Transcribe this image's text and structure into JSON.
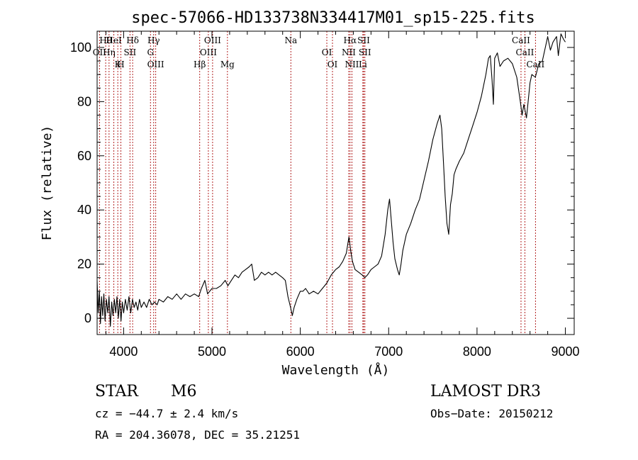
{
  "chart_data": {
    "type": "line",
    "title": "spec-57066-HD133738N334417M01_sp15-225.fits",
    "xlabel": "Wavelength (Å)",
    "ylabel": "Flux (relative)",
    "xlim": [
      3700,
      9100
    ],
    "ylim": [
      -6,
      106
    ],
    "x_ticks": [
      4000,
      5000,
      6000,
      7000,
      8000,
      9000
    ],
    "y_ticks": [
      0,
      20,
      40,
      60,
      80,
      100
    ],
    "series": [
      {
        "name": "spectrum",
        "points": [
          [
            3700,
            14
          ],
          [
            3712,
            2
          ],
          [
            3725,
            10
          ],
          [
            3738,
            -2
          ],
          [
            3750,
            8
          ],
          [
            3763,
            1
          ],
          [
            3776,
            9
          ],
          [
            3790,
            -1
          ],
          [
            3805,
            7
          ],
          [
            3820,
            2
          ],
          [
            3835,
            8
          ],
          [
            3850,
            -3
          ],
          [
            3865,
            6
          ],
          [
            3880,
            1
          ],
          [
            3895,
            7
          ],
          [
            3910,
            2
          ],
          [
            3925,
            8
          ],
          [
            3940,
            0
          ],
          [
            3955,
            7
          ],
          [
            3970,
            -1
          ],
          [
            3985,
            6
          ],
          [
            4000,
            2
          ],
          [
            4020,
            7
          ],
          [
            4040,
            3
          ],
          [
            4060,
            8
          ],
          [
            4080,
            2
          ],
          [
            4100,
            7
          ],
          [
            4120,
            4
          ],
          [
            4140,
            6
          ],
          [
            4160,
            3
          ],
          [
            4180,
            7
          ],
          [
            4200,
            4
          ],
          [
            4230,
            6
          ],
          [
            4260,
            4
          ],
          [
            4290,
            7
          ],
          [
            4320,
            5
          ],
          [
            4350,
            6
          ],
          [
            4380,
            5
          ],
          [
            4400,
            7
          ],
          [
            4450,
            6
          ],
          [
            4500,
            8
          ],
          [
            4550,
            7
          ],
          [
            4600,
            9
          ],
          [
            4650,
            7
          ],
          [
            4700,
            9
          ],
          [
            4750,
            8
          ],
          [
            4800,
            9
          ],
          [
            4850,
            8
          ],
          [
            4880,
            11
          ],
          [
            4920,
            14
          ],
          [
            4950,
            9
          ],
          [
            5000,
            11
          ],
          [
            5050,
            11
          ],
          [
            5100,
            12
          ],
          [
            5150,
            14
          ],
          [
            5180,
            12
          ],
          [
            5220,
            14
          ],
          [
            5260,
            16
          ],
          [
            5300,
            15
          ],
          [
            5340,
            17
          ],
          [
            5380,
            18
          ],
          [
            5420,
            19
          ],
          [
            5450,
            20
          ],
          [
            5480,
            14
          ],
          [
            5520,
            15
          ],
          [
            5560,
            17
          ],
          [
            5600,
            16
          ],
          [
            5640,
            17
          ],
          [
            5680,
            16
          ],
          [
            5720,
            17
          ],
          [
            5760,
            16
          ],
          [
            5800,
            15
          ],
          [
            5830,
            14
          ],
          [
            5860,
            8
          ],
          [
            5890,
            4
          ],
          [
            5910,
            1
          ],
          [
            5930,
            4
          ],
          [
            5960,
            7
          ],
          [
            6000,
            10
          ],
          [
            6030,
            10
          ],
          [
            6060,
            11
          ],
          [
            6100,
            9
          ],
          [
            6150,
            10
          ],
          [
            6200,
            9
          ],
          [
            6250,
            11
          ],
          [
            6300,
            13
          ],
          [
            6350,
            16
          ],
          [
            6400,
            18
          ],
          [
            6440,
            19
          ],
          [
            6480,
            21
          ],
          [
            6520,
            24
          ],
          [
            6550,
            30
          ],
          [
            6570,
            25
          ],
          [
            6590,
            21
          ],
          [
            6620,
            18
          ],
          [
            6660,
            17
          ],
          [
            6700,
            16
          ],
          [
            6730,
            15
          ],
          [
            6760,
            16
          ],
          [
            6800,
            18
          ],
          [
            6840,
            19
          ],
          [
            6880,
            20
          ],
          [
            6920,
            23
          ],
          [
            6960,
            31
          ],
          [
            6990,
            40
          ],
          [
            7010,
            44
          ],
          [
            7030,
            36
          ],
          [
            7050,
            28
          ],
          [
            7070,
            22
          ],
          [
            7100,
            18
          ],
          [
            7120,
            16
          ],
          [
            7140,
            20
          ],
          [
            7160,
            25
          ],
          [
            7200,
            31
          ],
          [
            7250,
            35
          ],
          [
            7300,
            40
          ],
          [
            7350,
            44
          ],
          [
            7400,
            51
          ],
          [
            7450,
            58
          ],
          [
            7500,
            66
          ],
          [
            7550,
            72
          ],
          [
            7580,
            75
          ],
          [
            7600,
            70
          ],
          [
            7620,
            58
          ],
          [
            7640,
            45
          ],
          [
            7660,
            35
          ],
          [
            7680,
            31
          ],
          [
            7700,
            42
          ],
          [
            7720,
            46
          ],
          [
            7740,
            53
          ],
          [
            7760,
            55
          ],
          [
            7800,
            58
          ],
          [
            7850,
            61
          ],
          [
            7900,
            66
          ],
          [
            7950,
            71
          ],
          [
            8000,
            76
          ],
          [
            8050,
            82
          ],
          [
            8100,
            90
          ],
          [
            8130,
            96
          ],
          [
            8150,
            97
          ],
          [
            8170,
            88
          ],
          [
            8185,
            79
          ],
          [
            8200,
            96
          ],
          [
            8230,
            98
          ],
          [
            8260,
            93
          ],
          [
            8300,
            95
          ],
          [
            8350,
            96
          ],
          [
            8400,
            94
          ],
          [
            8450,
            89
          ],
          [
            8490,
            80
          ],
          [
            8510,
            75
          ],
          [
            8530,
            79
          ],
          [
            8560,
            74
          ],
          [
            8600,
            87
          ],
          [
            8620,
            90
          ],
          [
            8660,
            89
          ],
          [
            8700,
            94
          ],
          [
            8740,
            95
          ],
          [
            8780,
            101
          ],
          [
            8800,
            104
          ],
          [
            8830,
            99
          ],
          [
            8860,
            102
          ],
          [
            8900,
            104
          ],
          [
            8920,
            97
          ],
          [
            8950,
            105
          ],
          [
            8980,
            103
          ],
          [
            9000,
            102
          ]
        ]
      }
    ],
    "lines": [
      {
        "label": "Hθ",
        "wavelength": 3797
      },
      {
        "label": "OII",
        "wavelength": 3727
      },
      {
        "label": "K",
        "wavelength": 3934
      },
      {
        "label": "HeI",
        "wavelength": 3889
      },
      {
        "label": "Hη",
        "wavelength": 3835
      },
      {
        "label": "H",
        "wavelength": 3969
      },
      {
        "label": "Hδ",
        "wavelength": 4102
      },
      {
        "label": "SII",
        "wavelength": 4072
      },
      {
        "label": "OIII",
        "wavelength": 4363
      },
      {
        "label": "Hγ",
        "wavelength": 4340
      },
      {
        "label": "G",
        "wavelength": 4304
      },
      {
        "label": "Hβ",
        "wavelength": 4861
      },
      {
        "label": "OIII",
        "wavelength": 5007
      },
      {
        "label": "OIII",
        "wavelength": 4959
      },
      {
        "label": "Mg",
        "wavelength": 5175
      },
      {
        "label": "Na",
        "wavelength": 5893
      },
      {
        "label": "OI",
        "wavelength": 6300
      },
      {
        "label": "OI",
        "wavelength": 6364
      },
      {
        "label": "Hα",
        "wavelength": 6563
      },
      {
        "label": "NII",
        "wavelength": 6548
      },
      {
        "label": "NII",
        "wavelength": 6584
      },
      {
        "label": "SII",
        "wavelength": 6717
      },
      {
        "label": "SII",
        "wavelength": 6731
      },
      {
        "label": "Li",
        "wavelength": 6708
      },
      {
        "label": "CaII",
        "wavelength": 8498
      },
      {
        "label": "CaII",
        "wavelength": 8542
      },
      {
        "label": "CaII",
        "wavelength": 8662
      }
    ]
  },
  "info": {
    "object_class": "STAR",
    "subclass": "M6",
    "survey": "LAMOST DR3",
    "cz": "cz = −44.7 ± 2.4 km/s",
    "obs_date": "Obs−Date: 20150212",
    "coords": "RA = 204.36078, DEC =  35.21251"
  },
  "colors": {
    "spectrum": "#000000",
    "line_marker": "#b22222"
  }
}
